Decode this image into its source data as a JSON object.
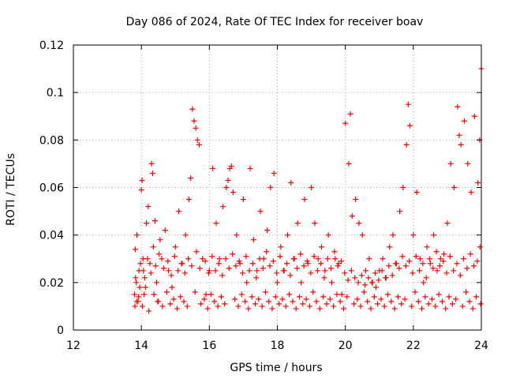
{
  "chart_data": {
    "type": "scatter",
    "title": "Day 086 of 2024, Rate Of TEC Index for receiver boav",
    "xlabel": "GPS time / hours",
    "ylabel": "ROTI / TECUs",
    "xlim": [
      12,
      24
    ],
    "ylim": [
      0,
      0.12
    ],
    "x_ticks": [
      12,
      14,
      16,
      18,
      20,
      22,
      24
    ],
    "x_tick_labels": [
      "12",
      "14",
      "16",
      "18",
      "20",
      "22",
      "24"
    ],
    "y_ticks": [
      0,
      0.02,
      0.04,
      0.06,
      0.08,
      0.1,
      0.12
    ],
    "y_tick_labels": [
      "0",
      "0.02",
      "0.04",
      "0.06",
      "0.08",
      "0.1",
      "0.12"
    ],
    "grid": true,
    "marker": "+",
    "series": [
      {
        "name": "ROTI",
        "color": "#ff0000",
        "x": [
          13.8,
          13.82,
          13.85,
          13.87,
          13.9,
          13.93,
          13.95,
          14.0,
          14.02,
          14.05,
          14.08,
          14.1,
          14.15,
          14.2,
          14.25,
          14.3,
          14.33,
          14.35,
          14.4,
          14.45,
          14.5,
          14.55,
          14.6,
          14.7,
          14.8,
          14.9,
          15.0,
          15.1,
          15.2,
          15.3,
          15.4,
          15.45,
          15.5,
          15.55,
          15.6,
          15.65,
          15.7,
          15.8,
          15.9,
          16.0,
          16.1,
          16.2,
          16.3,
          16.4,
          16.5,
          16.55,
          16.6,
          16.65,
          16.7,
          16.8,
          16.9,
          17.0,
          17.1,
          17.2,
          17.3,
          17.4,
          17.5,
          17.6,
          17.7,
          17.8,
          17.9,
          18.0,
          18.1,
          18.2,
          18.3,
          18.4,
          18.5,
          18.6,
          18.7,
          18.8,
          18.9,
          19.0,
          19.1,
          19.2,
          19.3,
          19.4,
          19.5,
          19.6,
          19.7,
          19.8,
          19.9,
          20.0,
          20.1,
          20.15,
          20.2,
          20.3,
          20.4,
          20.5,
          20.6,
          20.7,
          20.8,
          20.9,
          21.0,
          21.1,
          21.2,
          21.3,
          21.4,
          21.5,
          21.6,
          21.7,
          21.8,
          21.85,
          21.9,
          22.0,
          22.1,
          22.2,
          22.3,
          22.4,
          22.5,
          22.6,
          22.7,
          22.8,
          22.9,
          23.0,
          23.1,
          23.2,
          23.3,
          23.35,
          23.4,
          23.5,
          23.6,
          23.7,
          23.8,
          23.9,
          23.95,
          24.0,
          13.81,
          13.86,
          13.92,
          14.03,
          14.12,
          14.22,
          14.37,
          14.48,
          14.62,
          14.75,
          14.85,
          14.95,
          15.05,
          15.15,
          15.25,
          15.35,
          15.58,
          15.75,
          15.85,
          15.95,
          16.05,
          16.15,
          16.25,
          16.35,
          16.45,
          16.75,
          16.85,
          16.95,
          17.05,
          17.15,
          17.25,
          17.35,
          17.45,
          17.55,
          17.65,
          17.75,
          17.85,
          17.95,
          18.05,
          18.15,
          18.25,
          18.35,
          18.45,
          18.55,
          18.65,
          18.75,
          18.85,
          18.95,
          19.05,
          19.15,
          19.25,
          19.35,
          19.45,
          19.55,
          19.65,
          19.75,
          19.85,
          19.95,
          20.05,
          20.25,
          20.35,
          20.45,
          20.55,
          20.65,
          20.75,
          20.85,
          20.95,
          21.05,
          21.15,
          21.25,
          21.35,
          21.45,
          21.55,
          21.65,
          21.75,
          21.95,
          22.05,
          22.15,
          22.25,
          22.35,
          22.45,
          22.55,
          22.65,
          22.75,
          22.85,
          22.95,
          23.05,
          23.15,
          23.25,
          23.45,
          23.55,
          23.65,
          23.75,
          23.85,
          23.98,
          13.83,
          13.97,
          14.06,
          14.18,
          14.28,
          14.42,
          14.52,
          14.66,
          14.78,
          14.88,
          14.98,
          15.08,
          15.18,
          15.28,
          15.38,
          15.48,
          15.62,
          15.72,
          15.88,
          15.98,
          16.08,
          16.18,
          16.28,
          16.38,
          16.48,
          16.58,
          16.68,
          16.78,
          16.88,
          16.98,
          17.08,
          17.18,
          17.28,
          17.38,
          17.48,
          17.58,
          17.68,
          17.78,
          17.88,
          17.98,
          18.08,
          18.18,
          18.28,
          18.38,
          18.48,
          18.58,
          18.68,
          18.78,
          18.88,
          18.98,
          19.08,
          19.18,
          19.28,
          19.38,
          19.48,
          19.58,
          19.68,
          19.78,
          19.88,
          19.98,
          20.08,
          20.18,
          20.28,
          20.38,
          20.48,
          20.58,
          20.68,
          20.78,
          20.88,
          20.98,
          21.08,
          21.18,
          21.28,
          21.38,
          21.48,
          21.58,
          21.68,
          21.78,
          21.88,
          21.98,
          22.08,
          22.18,
          22.28,
          22.38,
          22.48,
          22.58,
          22.68,
          22.78,
          22.88,
          22.98,
          23.08,
          23.18,
          23.28,
          23.38,
          23.48,
          23.58,
          23.68,
          23.78,
          23.88,
          23.96
        ],
        "y": [
          0.015,
          0.034,
          0.02,
          0.04,
          0.012,
          0.025,
          0.018,
          0.059,
          0.063,
          0.03,
          0.015,
          0.022,
          0.045,
          0.052,
          0.028,
          0.07,
          0.066,
          0.035,
          0.046,
          0.02,
          0.012,
          0.038,
          0.03,
          0.042,
          0.025,
          0.018,
          0.035,
          0.05,
          0.028,
          0.04,
          0.055,
          0.064,
          0.093,
          0.088,
          0.085,
          0.08,
          0.078,
          0.03,
          0.015,
          0.025,
          0.068,
          0.045,
          0.03,
          0.052,
          0.06,
          0.063,
          0.068,
          0.069,
          0.058,
          0.04,
          0.028,
          0.055,
          0.02,
          0.068,
          0.038,
          0.025,
          0.05,
          0.03,
          0.042,
          0.06,
          0.066,
          0.02,
          0.035,
          0.025,
          0.04,
          0.062,
          0.03,
          0.045,
          0.02,
          0.055,
          0.028,
          0.06,
          0.045,
          0.03,
          0.035,
          0.025,
          0.04,
          0.02,
          0.03,
          0.028,
          0.015,
          0.087,
          0.07,
          0.091,
          0.048,
          0.055,
          0.045,
          0.04,
          0.025,
          0.03,
          0.02,
          0.018,
          0.025,
          0.03,
          0.022,
          0.035,
          0.04,
          0.028,
          0.05,
          0.06,
          0.078,
          0.095,
          0.086,
          0.04,
          0.058,
          0.03,
          0.02,
          0.035,
          0.028,
          0.04,
          0.025,
          0.03,
          0.032,
          0.045,
          0.07,
          0.06,
          0.094,
          0.082,
          0.078,
          0.088,
          0.07,
          0.058,
          0.09,
          0.062,
          0.08,
          0.11,
          0.01,
          0.012,
          0.014,
          0.01,
          0.018,
          0.008,
          0.015,
          0.012,
          0.01,
          0.016,
          0.011,
          0.013,
          0.009,
          0.014,
          0.012,
          0.01,
          0.016,
          0.011,
          0.013,
          0.009,
          0.015,
          0.012,
          0.01,
          0.014,
          0.011,
          0.013,
          0.01,
          0.015,
          0.012,
          0.009,
          0.014,
          0.011,
          0.013,
          0.01,
          0.016,
          0.012,
          0.009,
          0.014,
          0.011,
          0.013,
          0.01,
          0.015,
          0.012,
          0.009,
          0.014,
          0.011,
          0.013,
          0.01,
          0.016,
          0.012,
          0.009,
          0.014,
          0.011,
          0.013,
          0.01,
          0.015,
          0.012,
          0.009,
          0.014,
          0.011,
          0.013,
          0.01,
          0.016,
          0.012,
          0.009,
          0.014,
          0.011,
          0.013,
          0.01,
          0.015,
          0.012,
          0.009,
          0.014,
          0.011,
          0.013,
          0.01,
          0.016,
          0.012,
          0.009,
          0.014,
          0.011,
          0.013,
          0.01,
          0.015,
          0.012,
          0.009,
          0.014,
          0.011,
          0.013,
          0.01,
          0.016,
          0.012,
          0.009,
          0.014,
          0.011,
          0.022,
          0.028,
          0.025,
          0.03,
          0.024,
          0.027,
          0.032,
          0.026,
          0.029,
          0.023,
          0.031,
          0.025,
          0.028,
          0.024,
          0.03,
          0.027,
          0.033,
          0.026,
          0.029,
          0.024,
          0.031,
          0.025,
          0.028,
          0.023,
          0.03,
          0.026,
          0.032,
          0.027,
          0.029,
          0.024,
          0.031,
          0.025,
          0.028,
          0.022,
          0.03,
          0.026,
          0.033,
          0.027,
          0.029,
          0.024,
          0.031,
          0.025,
          0.028,
          0.023,
          0.03,
          0.026,
          0.032,
          0.027,
          0.029,
          0.024,
          0.031,
          0.025,
          0.028,
          0.022,
          0.03,
          0.026,
          0.033,
          0.027,
          0.029,
          0.024,
          0.021,
          0.025,
          0.022,
          0.02,
          0.023,
          0.019,
          0.022,
          0.02,
          0.024,
          0.021,
          0.025,
          0.022,
          0.027,
          0.023,
          0.028,
          0.026,
          0.031,
          0.027,
          0.029,
          0.024,
          0.031,
          0.025,
          0.028,
          0.022,
          0.03,
          0.026,
          0.033,
          0.027,
          0.029,
          0.024,
          0.031,
          0.025,
          0.028,
          0.023,
          0.03,
          0.026,
          0.032,
          0.027,
          0.029,
          0.035
        ]
      }
    ]
  }
}
